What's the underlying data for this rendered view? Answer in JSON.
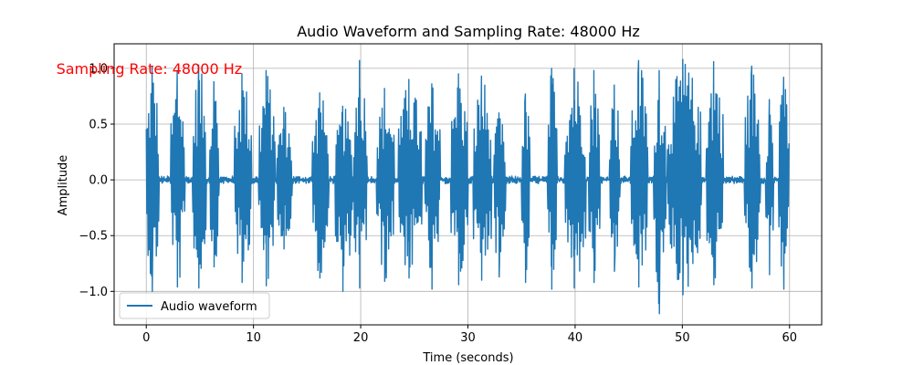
{
  "chart_data": {
    "type": "line",
    "title": "Audio Waveform and Sampling Rate: 48000 Hz",
    "xlabel": "Time (seconds)",
    "ylabel": "Amplitude",
    "xlim": [
      -3,
      63
    ],
    "ylim": [
      -1.3,
      1.22
    ],
    "xticks": [
      0,
      10,
      20,
      30,
      40,
      50,
      60
    ],
    "xtick_labels": [
      "0",
      "10",
      "20",
      "30",
      "40",
      "50",
      "60"
    ],
    "yticks": [
      -1.0,
      -0.5,
      0.0,
      0.5,
      1.0
    ],
    "ytick_labels": [
      "−1.0",
      "−0.5",
      "0.0",
      "0.5",
      "1.0"
    ],
    "grid": true,
    "legend_position": "lower-left",
    "series": [
      {
        "name": "Audio waveform",
        "color": "#1f77b4",
        "segments": [
          {
            "x_start": 0.0,
            "x_end": 1.2,
            "y_max": 1.02,
            "y_min": -1.0
          },
          {
            "x_start": 2.3,
            "x_end": 3.6,
            "y_max": 0.98,
            "y_min": -0.96
          },
          {
            "x_start": 4.3,
            "x_end": 5.6,
            "y_max": 1.03,
            "y_min": -0.97
          },
          {
            "x_start": 5.9,
            "x_end": 6.8,
            "y_max": 0.88,
            "y_min": -0.78
          },
          {
            "x_start": 8.2,
            "x_end": 9.8,
            "y_max": 0.95,
            "y_min": -0.92
          },
          {
            "x_start": 10.5,
            "x_end": 12.0,
            "y_max": 0.98,
            "y_min": -0.95
          },
          {
            "x_start": 12.2,
            "x_end": 13.6,
            "y_max": 0.65,
            "y_min": -0.62
          },
          {
            "x_start": 15.5,
            "x_end": 17.0,
            "y_max": 0.78,
            "y_min": -0.88
          },
          {
            "x_start": 17.6,
            "x_end": 19.2,
            "y_max": 0.66,
            "y_min": -1.0
          },
          {
            "x_start": 19.3,
            "x_end": 20.6,
            "y_max": 1.07,
            "y_min": -0.97
          },
          {
            "x_start": 21.5,
            "x_end": 23.1,
            "y_max": 0.82,
            "y_min": -0.91
          },
          {
            "x_start": 23.5,
            "x_end": 25.7,
            "y_max": 0.9,
            "y_min": -0.88
          },
          {
            "x_start": 26.0,
            "x_end": 27.4,
            "y_max": 0.86,
            "y_min": -0.98
          },
          {
            "x_start": 28.4,
            "x_end": 30.0,
            "y_max": 0.95,
            "y_min": -0.94
          },
          {
            "x_start": 30.5,
            "x_end": 32.2,
            "y_max": 0.93,
            "y_min": -0.9
          },
          {
            "x_start": 32.4,
            "x_end": 33.5,
            "y_max": 0.6,
            "y_min": -0.87
          },
          {
            "x_start": 35.0,
            "x_end": 35.8,
            "y_max": 0.77,
            "y_min": -0.92
          },
          {
            "x_start": 37.4,
            "x_end": 38.3,
            "y_max": 1.0,
            "y_min": -0.98
          },
          {
            "x_start": 39.0,
            "x_end": 41.0,
            "y_max": 1.0,
            "y_min": -0.97
          },
          {
            "x_start": 41.3,
            "x_end": 42.3,
            "y_max": 0.98,
            "y_min": -0.92
          },
          {
            "x_start": 43.2,
            "x_end": 44.2,
            "y_max": 0.85,
            "y_min": -0.82
          },
          {
            "x_start": 45.2,
            "x_end": 46.8,
            "y_max": 1.07,
            "y_min": -0.96
          },
          {
            "x_start": 47.3,
            "x_end": 48.5,
            "y_max": 0.98,
            "y_min": -1.2
          },
          {
            "x_start": 48.6,
            "x_end": 51.8,
            "y_max": 1.08,
            "y_min": -1.03
          },
          {
            "x_start": 52.2,
            "x_end": 53.8,
            "y_max": 1.06,
            "y_min": -0.94
          },
          {
            "x_start": 55.8,
            "x_end": 57.3,
            "y_max": 1.02,
            "y_min": -0.97
          },
          {
            "x_start": 57.8,
            "x_end": 58.5,
            "y_max": 0.72,
            "y_min": -0.85
          },
          {
            "x_start": 59.0,
            "x_end": 60.0,
            "y_max": 0.92,
            "y_min": -0.98
          }
        ]
      }
    ],
    "annotations": [
      {
        "text": "Sampling Rate: 48000 Hz",
        "x": -8.4,
        "y": 1.0,
        "color": "#ff0000"
      }
    ]
  }
}
